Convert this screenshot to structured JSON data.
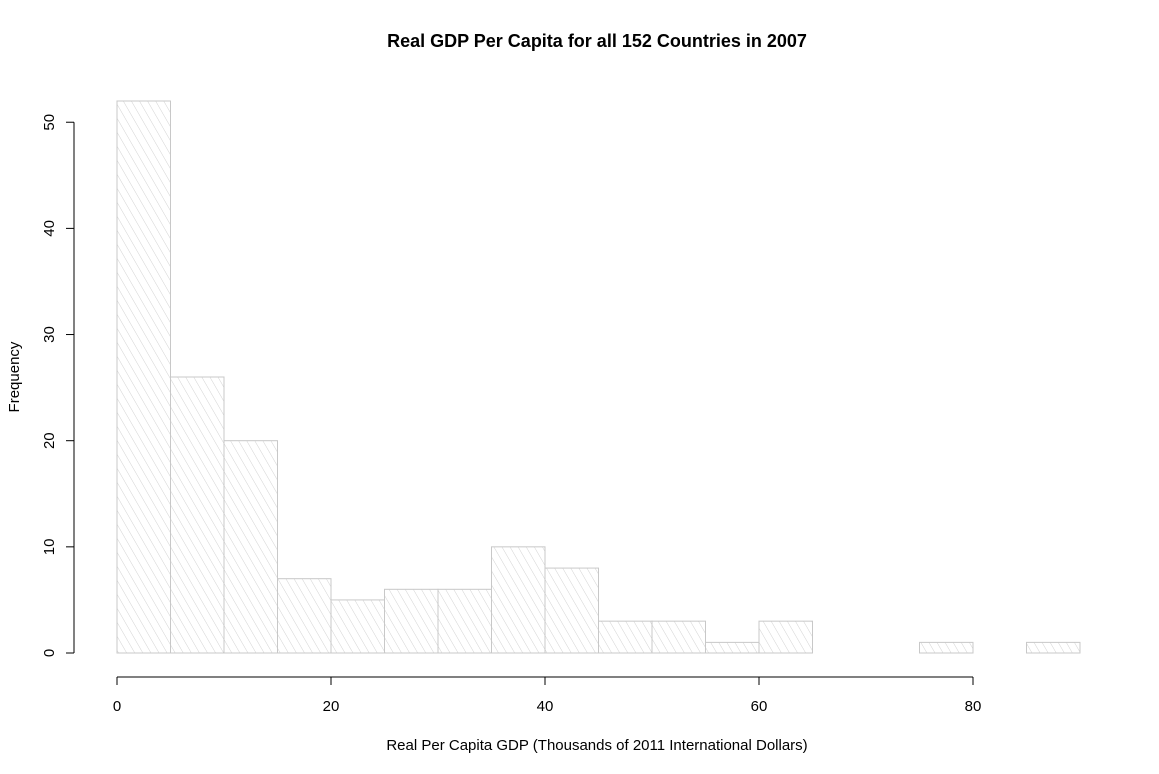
{
  "chart_data": {
    "type": "bar",
    "title": "Real GDP Per Capita for  all 152 Countries in 2007",
    "xlabel": "Real Per Capita GDP (Thousands of 2011 International Dollars)",
    "ylabel": "Frequency",
    "bin_edges": [
      0,
      5,
      10,
      15,
      20,
      25,
      30,
      35,
      40,
      45,
      50,
      55,
      60,
      65,
      70,
      75,
      80,
      85,
      90
    ],
    "values": [
      52,
      26,
      20,
      7,
      5,
      6,
      6,
      10,
      8,
      3,
      3,
      1,
      3,
      0,
      0,
      1,
      0,
      1
    ],
    "xlim": [
      0,
      90
    ],
    "ylim": [
      0,
      52
    ],
    "x_ticks": [
      0,
      20,
      40,
      60,
      80
    ],
    "y_ticks": [
      0,
      10,
      20,
      30,
      40,
      50
    ],
    "grid": false,
    "colors": {
      "bar_border": "#c8c8c8",
      "hatch": "#d2d2d2"
    }
  }
}
